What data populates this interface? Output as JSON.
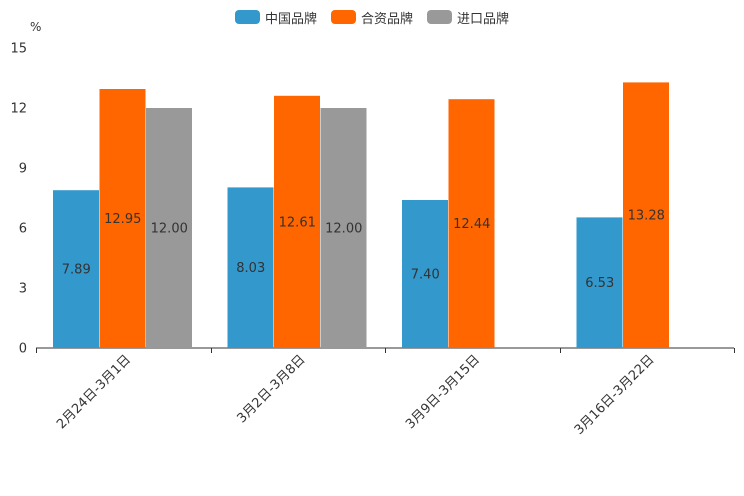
{
  "chart_data": {
    "type": "bar",
    "unit": "%",
    "categories": [
      "2月24日-3月1日",
      "3月2日-3月8日",
      "3月9日-3月15日",
      "3月16日-3月22日"
    ],
    "series": [
      {
        "name": "中国品牌",
        "color": "#3398cc",
        "values": [
          7.89,
          8.03,
          7.4,
          6.53
        ],
        "labels": [
          "7.89",
          "8.03",
          "7.40",
          "6.53"
        ]
      },
      {
        "name": "合资品牌",
        "color": "#ff6600",
        "values": [
          12.95,
          12.61,
          12.44,
          13.28
        ],
        "labels": [
          "12.95",
          "12.61",
          "12.44",
          "13.28"
        ]
      },
      {
        "name": "进口品牌",
        "color": "#999999",
        "values": [
          12.0,
          12.0,
          null,
          null
        ],
        "labels": [
          "12.00",
          "12.00",
          null,
          null
        ]
      }
    ],
    "ylim": [
      0,
      15
    ],
    "yticks": [
      0,
      3,
      6,
      9,
      12,
      15
    ],
    "legend_position": "top-center"
  }
}
